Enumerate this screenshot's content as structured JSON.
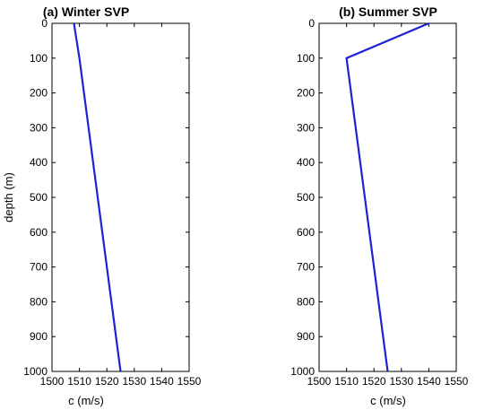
{
  "chart_data": [
    {
      "type": "line",
      "title": "(a) Winter SVP",
      "xlabel": "c (m/s)",
      "ylabel": "depth (m)",
      "xlim": [
        1500,
        1550
      ],
      "ylim": [
        0,
        1000
      ],
      "y_reversed": true,
      "xticks": [
        1500,
        1510,
        1520,
        1530,
        1540,
        1550
      ],
      "yticks": [
        0,
        100,
        200,
        300,
        400,
        500,
        600,
        700,
        800,
        900,
        1000
      ],
      "grid": false,
      "series": [
        {
          "color": "#1f1fd6",
          "x": [
            1508,
            1510,
            1525
          ],
          "y": [
            0,
            100,
            1000
          ]
        }
      ]
    },
    {
      "type": "line",
      "title": "(b) Summer SVP",
      "xlabel": "c (m/s)",
      "ylabel": "",
      "xlim": [
        1500,
        1550
      ],
      "ylim": [
        0,
        1000
      ],
      "y_reversed": true,
      "xticks": [
        1500,
        1510,
        1520,
        1530,
        1540,
        1550
      ],
      "yticks": [
        0,
        100,
        200,
        300,
        400,
        500,
        600,
        700,
        800,
        900,
        1000
      ],
      "grid": false,
      "series": [
        {
          "color": "#1f1fd6",
          "x": [
            1540,
            1510,
            1525
          ],
          "y": [
            0,
            100,
            1000
          ]
        }
      ]
    }
  ]
}
